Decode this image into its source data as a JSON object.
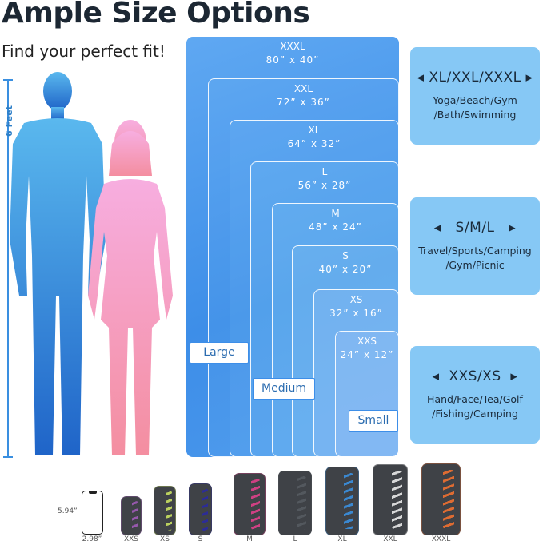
{
  "title": "Ample Size Options",
  "subtitle": "Find your perfect fit!",
  "height_label": "6 Feet",
  "sizes": [
    {
      "name": "XXXL",
      "dims": "80” x 40”"
    },
    {
      "name": "XXL",
      "dims": "72” x 36”"
    },
    {
      "name": "XL",
      "dims": "64” x 32”"
    },
    {
      "name": "L",
      "dims": "56” x 28”"
    },
    {
      "name": "M",
      "dims": "48” x 24”"
    },
    {
      "name": "S",
      "dims": "40” x 20”"
    },
    {
      "name": "XS",
      "dims": "32” x 16”"
    },
    {
      "name": "XXS",
      "dims": "24” x 12”"
    }
  ],
  "groups": {
    "large": "Large",
    "medium": "Medium",
    "small": "Small"
  },
  "cards": [
    {
      "heading": "XL/XXL/XXXL",
      "line1": "Yoga/Beach/Gym",
      "line2": "/Bath/Swimming"
    },
    {
      "heading": "S/M/L",
      "line1": "Travel/Sports/Camping",
      "line2": "/Gym/Picnic"
    },
    {
      "heading": "XXS/XS",
      "line1": "Hand/Face/Tea/Golf",
      "line2": "/Fishing/Camping"
    }
  ],
  "phone": {
    "height": "5.94”",
    "width": "2.98”"
  },
  "pouches": [
    {
      "label": "XXS",
      "color": "#a05ab8"
    },
    {
      "label": "XS",
      "color": "#c8e060"
    },
    {
      "label": "S",
      "color": "#2a2aa0"
    },
    {
      "label": "M",
      "color": "#e0408a"
    },
    {
      "label": "L",
      "color": "#555a60"
    },
    {
      "label": "XL",
      "color": "#3a90e0"
    },
    {
      "label": "XXL",
      "color": "#e8e8e8"
    },
    {
      "label": "XXXL",
      "color": "#f07030"
    }
  ],
  "colors": {
    "man": "#3a8fe0",
    "woman": "#f7a8c8",
    "accent": "#3d8ee8",
    "card": "#86c8f5"
  }
}
